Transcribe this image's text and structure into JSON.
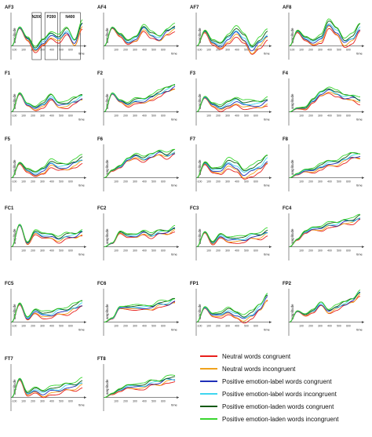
{
  "colors": {
    "neutral_congruent": "#e8201c",
    "neutral_incongruent": "#f0a21c",
    "label_congruent": "#1f2fb8",
    "label_incongruent": "#3fd6f0",
    "laden_congruent": "#0f5a14",
    "laden_incongruent": "#39d62f"
  },
  "chart_data": {
    "type": "line",
    "shared_axes": {
      "xlabel": "time",
      "ylabel": "amplitude",
      "x_range": [
        -100,
        800
      ],
      "x_ticks": [
        "-100",
        "100",
        "200",
        "300",
        "400",
        "500",
        "600"
      ]
    },
    "series": [
      {
        "name": "Neutral words congruent",
        "color_key": "neutral_congruent"
      },
      {
        "name": "Neutral words incongruent",
        "color_key": "neutral_incongruent"
      },
      {
        "name": "Positive emotion-label words congruent",
        "color_key": "label_congruent"
      },
      {
        "name": "Positive emotion-label words incongruent",
        "color_key": "label_incongruent"
      },
      {
        "name": "Positive emotion-laden words congruent",
        "color_key": "laden_congruent"
      },
      {
        "name": "Positive emotion-laden words incongruent",
        "color_key": "laden_incongruent"
      }
    ],
    "panels": [
      {
        "title": "AF3",
        "windows": [
          "N200",
          "P200",
          "N400"
        ],
        "profile": [
          0,
          5,
          2,
          -1,
          1,
          3,
          2,
          4,
          1,
          6
        ],
        "spread": 1.2,
        "x_ticks": [
          "-100",
          "100",
          "200",
          "300",
          "400",
          "500",
          "600"
        ]
      },
      {
        "title": "AF4",
        "windows": [],
        "profile": [
          0,
          5,
          3,
          1,
          2,
          5,
          3,
          2,
          4,
          5
        ],
        "spread": 1.0,
        "x_ticks": [
          "100",
          "200",
          "300",
          "400",
          "500",
          "600"
        ]
      },
      {
        "title": "AF7",
        "windows": [],
        "profile": [
          0,
          4,
          1,
          0,
          2,
          4,
          2,
          -1,
          1,
          3
        ],
        "spread": 1.6,
        "x_ticks": [
          "-100",
          "100",
          "200",
          "300",
          "400",
          "500",
          "600"
        ]
      },
      {
        "title": "AF8",
        "windows": [],
        "profile": [
          0,
          4,
          2,
          1,
          2,
          6,
          4,
          1,
          2,
          5
        ],
        "spread": 1.4,
        "x_ticks": [
          "-100",
          "100",
          "200",
          "300",
          "400",
          "500",
          "600"
        ]
      },
      {
        "title": "F1",
        "windows": [],
        "profile": [
          0,
          5,
          2,
          1,
          2,
          4,
          2,
          2,
          3,
          4
        ],
        "spread": 1.0,
        "x_ticks": [
          "-100",
          "100",
          "200",
          "300",
          "400",
          "500",
          "600"
        ]
      },
      {
        "title": "F2",
        "windows": [],
        "profile": [
          0,
          5,
          3,
          2,
          3,
          3,
          4,
          5,
          6,
          7
        ],
        "spread": 0.9,
        "x_ticks": [
          "100",
          "200",
          "300",
          "400",
          "500",
          "600"
        ]
      },
      {
        "title": "F3",
        "windows": [],
        "profile": [
          0,
          4,
          2,
          1,
          2,
          3,
          2,
          2,
          2,
          3
        ],
        "spread": 1.3,
        "x_ticks": [
          "100",
          "200",
          "300",
          "400",
          "500",
          "600"
        ]
      },
      {
        "title": "F4",
        "windows": [],
        "profile": [
          0,
          1,
          1,
          3,
          5,
          6,
          5,
          4,
          4,
          3
        ],
        "spread": 0.9,
        "x_ticks": [
          "100",
          "200",
          "300",
          "400",
          "500",
          "600"
        ]
      },
      {
        "title": "F5",
        "windows": [],
        "profile": [
          0,
          4,
          2,
          1,
          2,
          4,
          3,
          3,
          4,
          5
        ],
        "spread": 1.2,
        "x_ticks": [
          "-100",
          "100",
          "200",
          "300",
          "400",
          "500",
          "600"
        ]
      },
      {
        "title": "F6",
        "windows": [],
        "profile": [
          0,
          2,
          3,
          5,
          6,
          5,
          6,
          7,
          6,
          7
        ],
        "spread": 0.8,
        "x_ticks": [
          "100",
          "200",
          "300",
          "400",
          "500",
          "600"
        ]
      },
      {
        "title": "F7",
        "windows": [],
        "profile": [
          0,
          4,
          2,
          2,
          4,
          3,
          1,
          2,
          3,
          5
        ],
        "spread": 1.7,
        "x_ticks": [
          "-100",
          "100",
          "200",
          "300",
          "400",
          "500",
          "600"
        ]
      },
      {
        "title": "F8",
        "windows": [],
        "profile": [
          0,
          1,
          2,
          2,
          3,
          4,
          4,
          5,
          6,
          6
        ],
        "spread": 1.0,
        "x_ticks": [
          "100",
          "200",
          "300",
          "400",
          "500",
          "600"
        ]
      },
      {
        "title": "FC1",
        "windows": [],
        "profile": [
          0,
          6,
          1,
          4,
          3,
          3,
          2,
          3,
          3,
          4
        ],
        "spread": 0.9,
        "x_ticks": [
          "100",
          "200",
          "300",
          "400",
          "500",
          "600"
        ]
      },
      {
        "title": "FC2",
        "windows": [],
        "profile": [
          0,
          1,
          4,
          3,
          3,
          4,
          3,
          4,
          4,
          5
        ],
        "spread": 0.7,
        "x_ticks": [
          "100",
          "200",
          "300",
          "400",
          "500",
          "600"
        ]
      },
      {
        "title": "FC3",
        "windows": [],
        "profile": [
          0,
          4,
          1,
          3,
          2,
          2,
          2,
          3,
          3,
          4
        ],
        "spread": 1.0,
        "x_ticks": [
          "100",
          "200",
          "300",
          "400",
          "500",
          "600"
        ]
      },
      {
        "title": "FC4",
        "windows": [],
        "profile": [
          0,
          2,
          4,
          5,
          5,
          6,
          6,
          7,
          7,
          8
        ],
        "spread": 0.8,
        "x_ticks": [
          "100",
          "200",
          "300",
          "400",
          "500",
          "600"
        ]
      },
      {
        "title": "FC5",
        "windows": [],
        "profile": [
          0,
          5,
          1,
          3,
          2,
          2,
          3,
          3,
          4,
          5
        ],
        "spread": 1.1,
        "x_ticks": [
          "-100",
          "100",
          "200",
          "300",
          "400",
          "500",
          "600"
        ]
      },
      {
        "title": "FC6",
        "windows": [],
        "profile": [
          0,
          1,
          4,
          4,
          4,
          4,
          4,
          5,
          5,
          6
        ],
        "spread": 0.8,
        "x_ticks": [
          "100",
          "200",
          "300",
          "400",
          "500",
          "600"
        ]
      },
      {
        "title": "FP1",
        "windows": [],
        "profile": [
          0,
          4,
          2,
          2,
          3,
          2,
          1,
          2,
          4,
          7
        ],
        "spread": 1.2,
        "x_ticks": [
          "-100",
          "100",
          "200",
          "300",
          "400",
          "500",
          "600"
        ]
      },
      {
        "title": "FP2",
        "windows": [],
        "profile": [
          0,
          3,
          2,
          3,
          5,
          3,
          4,
          5,
          6,
          8
        ],
        "spread": 0.7,
        "x_ticks": [
          "100",
          "200",
          "300",
          "400",
          "500",
          "600"
        ]
      },
      {
        "title": "FT7",
        "windows": [],
        "profile": [
          0,
          5,
          1,
          2,
          1,
          2,
          2,
          3,
          3,
          4
        ],
        "spread": 1.3,
        "x_ticks": [
          "-100",
          "100",
          "200",
          "300",
          "400",
          "500",
          "600"
        ]
      },
      {
        "title": "FT8",
        "windows": [],
        "profile": [
          0,
          1,
          2,
          3,
          3,
          3,
          4,
          4,
          5,
          5
        ],
        "spread": 0.9,
        "x_ticks": [
          "100",
          "200",
          "300",
          "400",
          "500",
          "600"
        ]
      }
    ]
  }
}
